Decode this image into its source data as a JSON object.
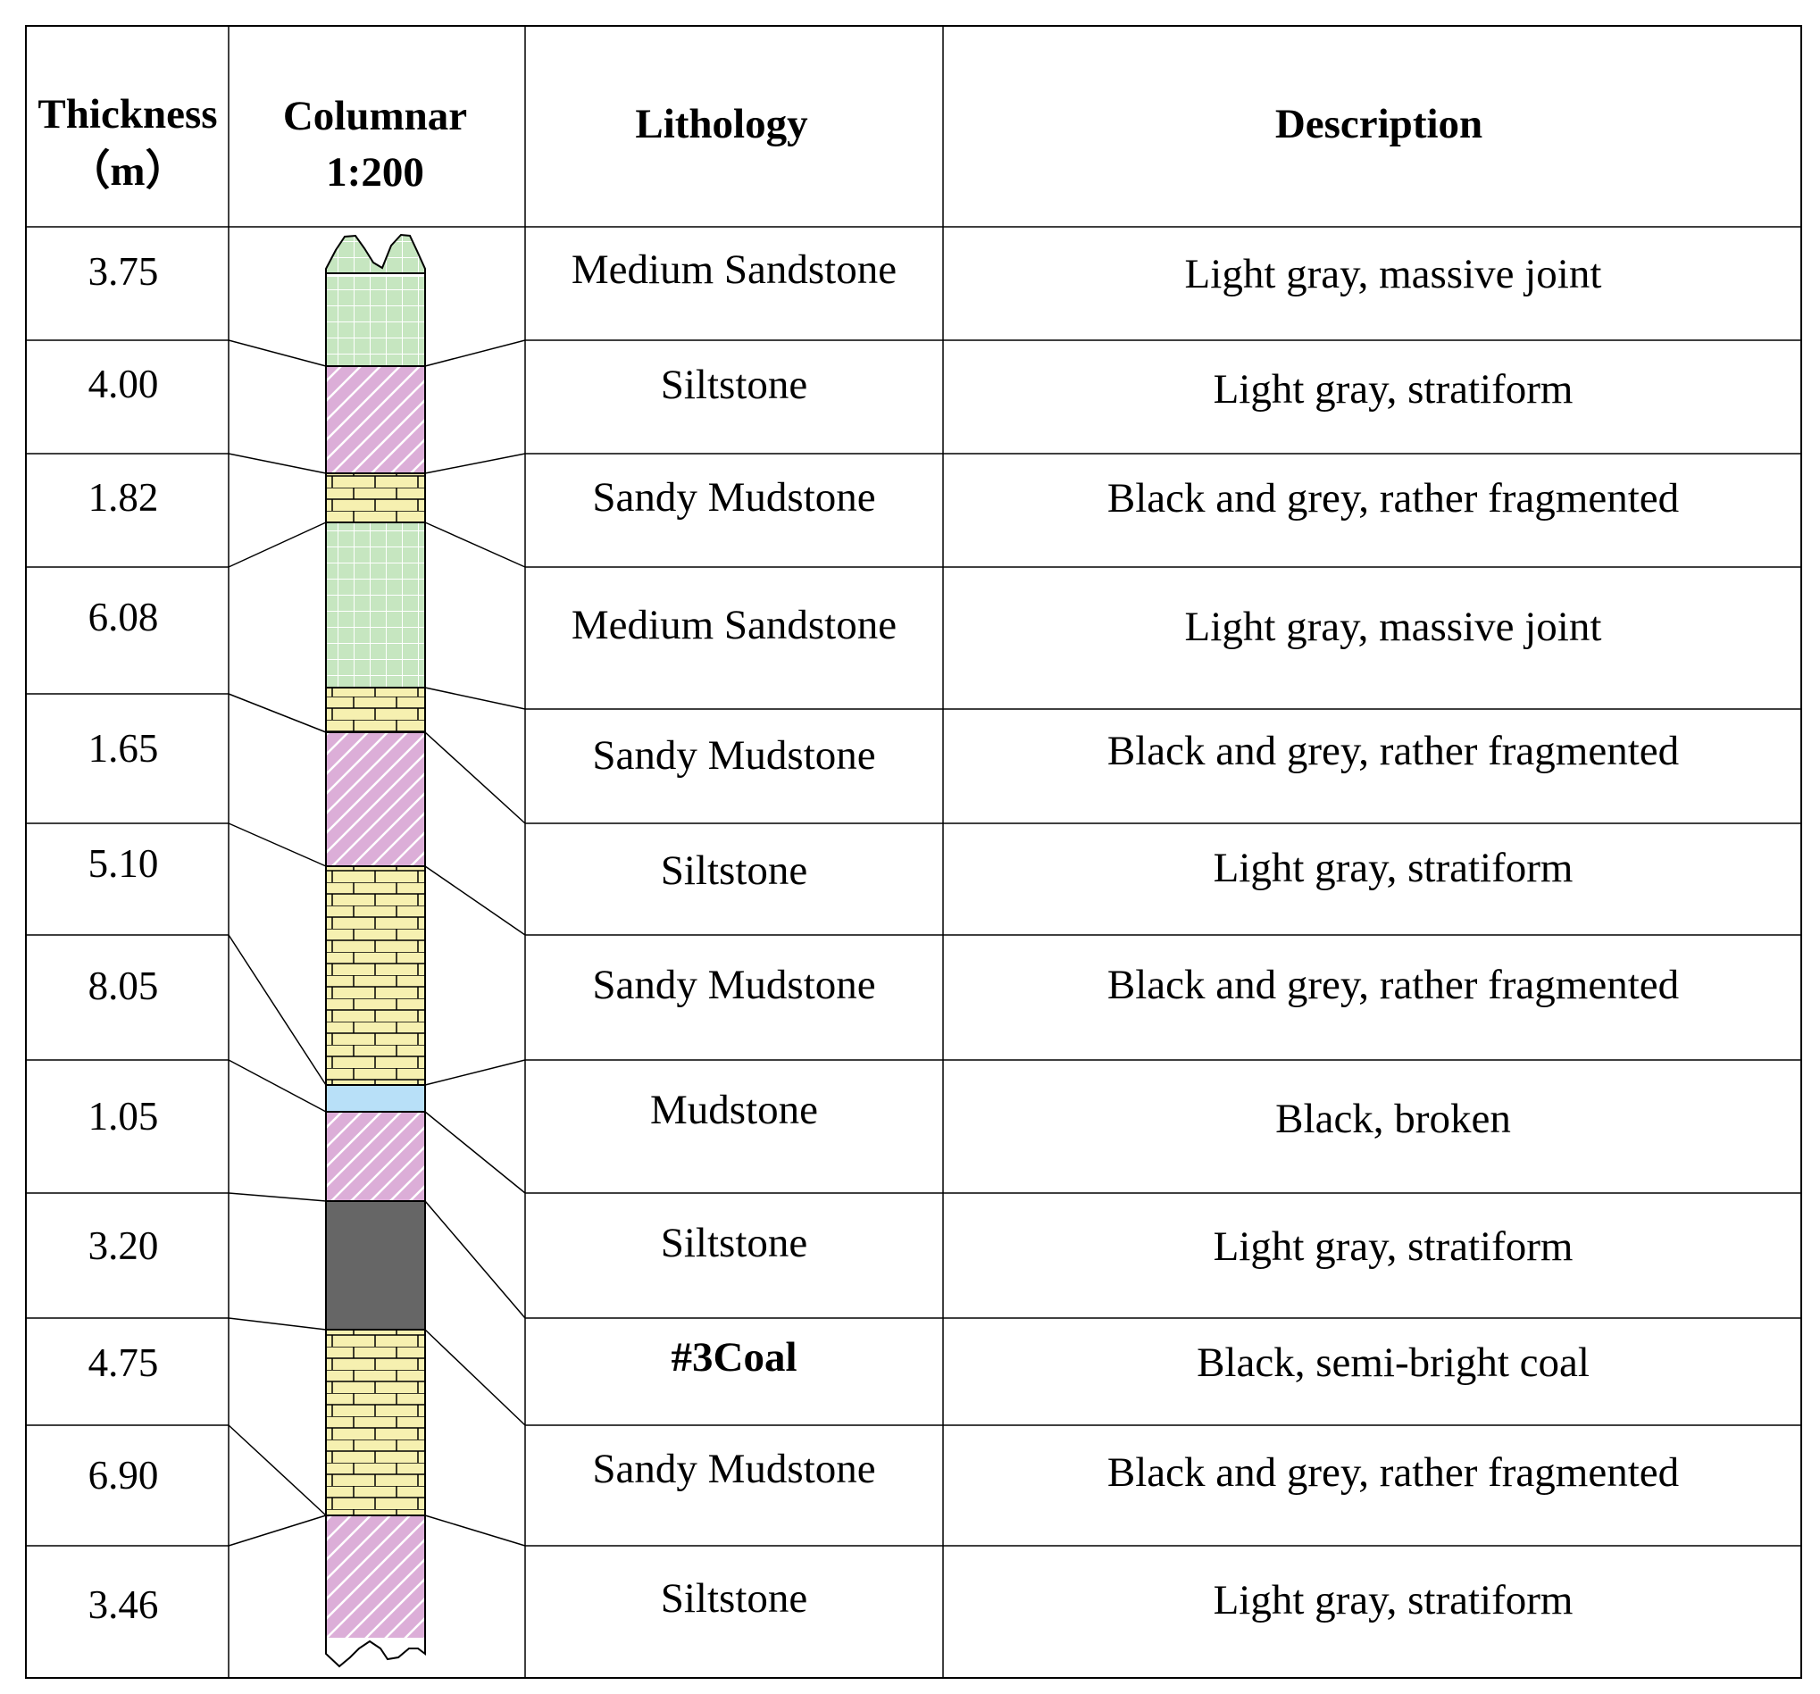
{
  "headers": {
    "thickness_line1": "Thickness",
    "thickness_line2": "（m）",
    "columnar_line1": "Columnar",
    "columnar_line2": "1:200",
    "lithology": "Lithology",
    "description": "Description"
  },
  "layers": [
    {
      "thickness": "3.75",
      "lithology": "Medium Sandstone",
      "description": "Light gray, massive joint",
      "lithology_bold": false
    },
    {
      "thickness": "4.00",
      "lithology": "Siltstone",
      "description": "Light gray, stratiform",
      "lithology_bold": false
    },
    {
      "thickness": "1.82",
      "lithology": "Sandy Mudstone",
      "description": "Black and grey, rather fragmented",
      "lithology_bold": false
    },
    {
      "thickness": "6.08",
      "lithology": "Medium Sandstone",
      "description": "Light gray, massive joint",
      "lithology_bold": false
    },
    {
      "thickness": "1.65",
      "lithology": "Sandy Mudstone",
      "description": "Black and grey, rather fragmented",
      "lithology_bold": false
    },
    {
      "thickness": "5.10",
      "lithology": "Siltstone",
      "description": "Light gray, stratiform",
      "lithology_bold": false
    },
    {
      "thickness": "8.05",
      "lithology": "Sandy Mudstone",
      "description": "Black and grey, rather fragmented",
      "lithology_bold": false
    },
    {
      "thickness": "1.05",
      "lithology": "Mudstone",
      "description": "Black, broken",
      "lithology_bold": false
    },
    {
      "thickness": "3.20",
      "lithology": "Siltstone",
      "description": "Light gray, stratiform",
      "lithology_bold": false
    },
    {
      "thickness": "4.75",
      "lithology": "#3Coal",
      "description": "Black, semi-bright coal",
      "lithology_bold": true
    },
    {
      "thickness": "6.90",
      "lithology": "Sandy Mudstone",
      "description": "Black and grey, rather fragmented",
      "lithology_bold": false
    },
    {
      "thickness": "3.46",
      "lithology": "Siltstone",
      "description": "Light gray, stratiform",
      "lithology_bold": false
    }
  ],
  "column_units": [
    {
      "pattern": "grid"
    },
    {
      "pattern": "hatch"
    },
    {
      "pattern": "brick"
    },
    {
      "pattern": "grid"
    },
    {
      "pattern": "brick"
    },
    {
      "pattern": "hatch"
    },
    {
      "pattern": "brick"
    },
    {
      "pattern": "water"
    },
    {
      "pattern": "hatch"
    },
    {
      "pattern": "coal"
    },
    {
      "pattern": "brick"
    },
    {
      "pattern": "hatch"
    }
  ],
  "pattern_colors": {
    "grid": "#c6e6c0",
    "hatch": "#dcaed8",
    "brick": "#f6f0b0",
    "water": "#b8e0f8",
    "coal": "#666666",
    "line": "#000000"
  }
}
